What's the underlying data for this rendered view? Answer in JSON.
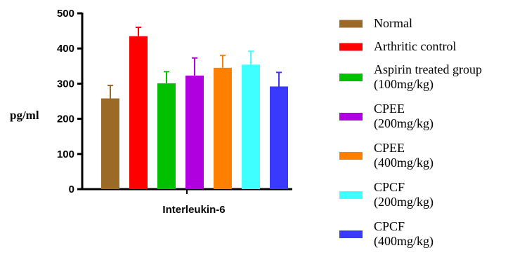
{
  "chart_data": {
    "type": "bar",
    "ylabel": "pg/ml",
    "xlabel": "Interleukin-6",
    "ylim": [
      0,
      500
    ],
    "yticks": [
      0,
      100,
      200,
      300,
      400,
      500
    ],
    "legend_position": "right",
    "series": [
      {
        "name": "Normal",
        "value": 258,
        "error": 37,
        "color": "#9C6A27"
      },
      {
        "name": "Arthritic control",
        "value": 435,
        "error": 25,
        "color": "#FF0000"
      },
      {
        "name": "Aspirin treated group\n(100mg/kg)",
        "value": 301,
        "error": 33,
        "color": "#00C000"
      },
      {
        "name": "CPEE\n(200mg/kg)",
        "value": 323,
        "error": 50,
        "color": "#B000E0"
      },
      {
        "name": "CPEE\n(400mg/kg)",
        "value": 345,
        "error": 35,
        "color": "#FF8000"
      },
      {
        "name": "CPCF\n(200mg/kg)",
        "value": 354,
        "error": 38,
        "color": "#40FFFF"
      },
      {
        "name": "CPCF\n(400mg/kg)",
        "value": 292,
        "error": 40,
        "color": "#3A3AFF"
      }
    ]
  }
}
